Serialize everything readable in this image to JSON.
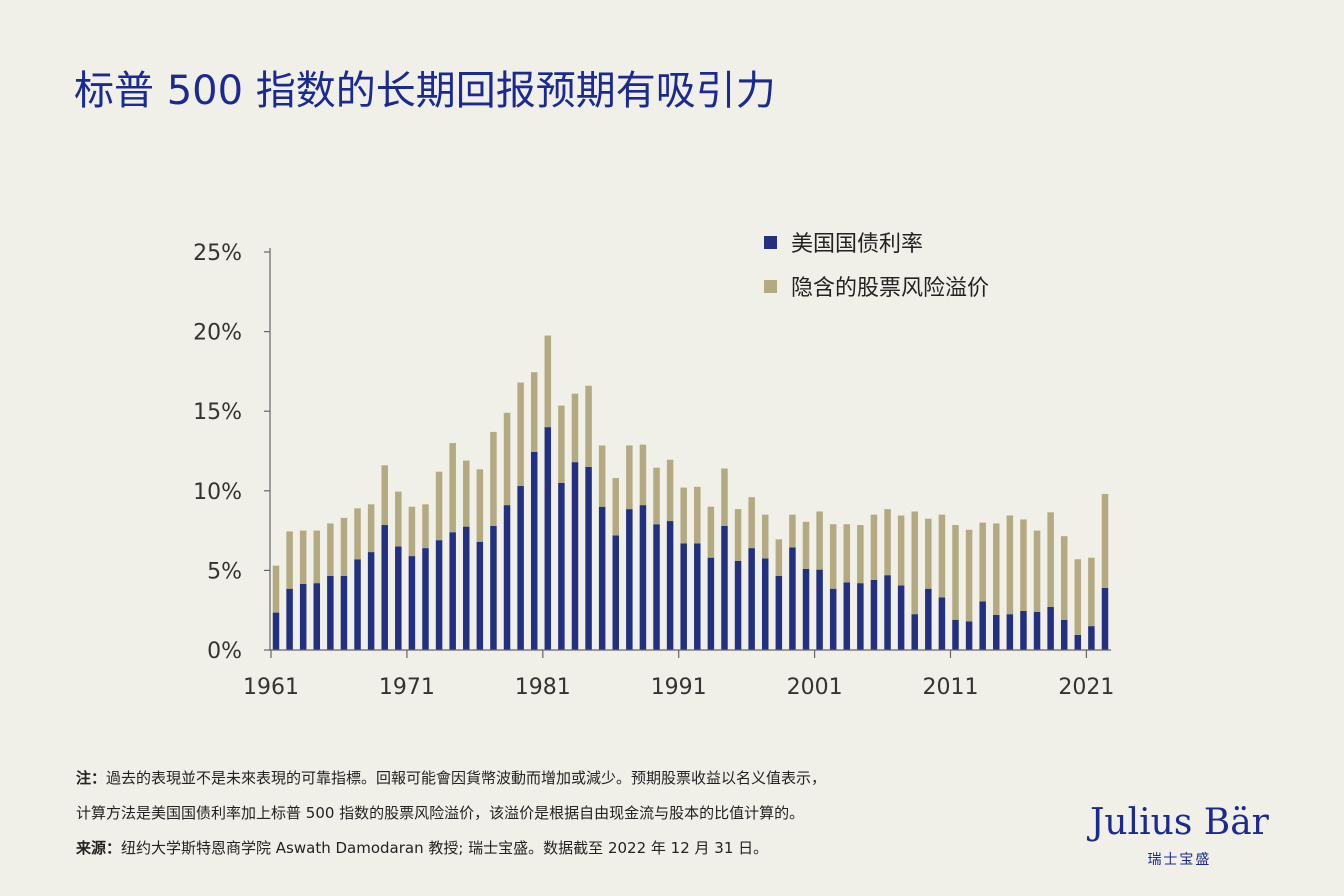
{
  "title": "标普 500 指数的长期回报预期有吸引力",
  "colors": {
    "background": "#f0efe8",
    "title": "#1b2a90",
    "treasury": "#23307f",
    "premium": "#b3aa82"
  },
  "chart_data": {
    "type": "bar",
    "stacked": true,
    "title": "",
    "xlabel": "",
    "ylabel": "",
    "ylim": [
      0,
      25
    ],
    "yticks": [
      "0%",
      "5%",
      "10%",
      "15%",
      "20%",
      "25%"
    ],
    "ytick_values": [
      0,
      5,
      10,
      15,
      20,
      25
    ],
    "xticks": [
      "1961",
      "1971",
      "1981",
      "1991",
      "2001",
      "2011",
      "2021"
    ],
    "legend_position": "top-right",
    "grid": false,
    "categories": [
      1961,
      1962,
      1963,
      1964,
      1965,
      1966,
      1967,
      1968,
      1969,
      1970,
      1971,
      1972,
      1973,
      1974,
      1975,
      1976,
      1977,
      1978,
      1979,
      1980,
      1981,
      1982,
      1983,
      1984,
      1985,
      1986,
      1987,
      1988,
      1989,
      1990,
      1991,
      1992,
      1993,
      1994,
      1995,
      1996,
      1997,
      1998,
      1999,
      2000,
      2001,
      2002,
      2003,
      2004,
      2005,
      2006,
      2007,
      2008,
      2009,
      2010,
      2011,
      2012,
      2013,
      2014,
      2015,
      2016,
      2017,
      2018,
      2019,
      2020,
      2021,
      2022
    ],
    "series": [
      {
        "name": "美国国债利率",
        "color": "#23307f",
        "values": [
          2.35,
          3.85,
          4.15,
          4.2,
          4.65,
          4.65,
          5.7,
          6.15,
          7.85,
          6.5,
          5.9,
          6.4,
          6.9,
          7.4,
          7.75,
          6.8,
          7.8,
          9.1,
          10.3,
          12.45,
          14.0,
          10.5,
          11.8,
          11.5,
          9.0,
          7.2,
          8.85,
          9.1,
          7.9,
          8.1,
          6.7,
          6.7,
          5.8,
          7.8,
          5.6,
          6.4,
          5.75,
          4.65,
          6.45,
          5.1,
          5.05,
          3.85,
          4.25,
          4.2,
          4.4,
          4.7,
          4.05,
          2.25,
          3.85,
          3.3,
          1.9,
          1.8,
          3.05,
          2.2,
          2.25,
          2.45,
          2.4,
          2.7,
          1.9,
          0.95,
          1.5,
          3.9
        ]
      },
      {
        "name": "隐含的股票风险溢价",
        "color": "#b3aa82",
        "values": [
          2.95,
          3.6,
          3.35,
          3.3,
          3.3,
          3.65,
          3.2,
          3.0,
          3.75,
          3.45,
          3.1,
          2.75,
          4.3,
          5.6,
          4.15,
          4.55,
          5.9,
          5.8,
          6.5,
          5.0,
          5.75,
          4.85,
          4.3,
          5.1,
          3.85,
          3.6,
          4.0,
          3.8,
          3.55,
          3.85,
          3.5,
          3.55,
          3.2,
          3.6,
          3.25,
          3.2,
          2.75,
          2.3,
          2.05,
          2.95,
          3.65,
          4.05,
          3.65,
          3.65,
          4.1,
          4.15,
          4.4,
          6.45,
          4.4,
          5.2,
          5.95,
          5.75,
          4.95,
          5.75,
          6.2,
          5.75,
          5.1,
          5.95,
          5.25,
          4.75,
          4.3,
          5.9
        ]
      }
    ]
  },
  "notes": {
    "line1_label": "注：",
    "line1": "過去的表現並不是未來表現的可靠指標。回報可能會因貨幣波動而增加或減少。预期股票收益以名义值表示，",
    "line2": "计算方法是美国国债利率加上标普 500 指数的股票风险溢价，该溢价是根据自由现金流与股本的比值计算的。",
    "line3_label": "来源：",
    "line3": "纽约大学斯特恩商学院 Aswath Damodaran 教授; 瑞士宝盛。数据截至 2022 年 12 月 31 日。"
  },
  "logo": {
    "name": "Julius Bär",
    "sub": "瑞士宝盛"
  }
}
